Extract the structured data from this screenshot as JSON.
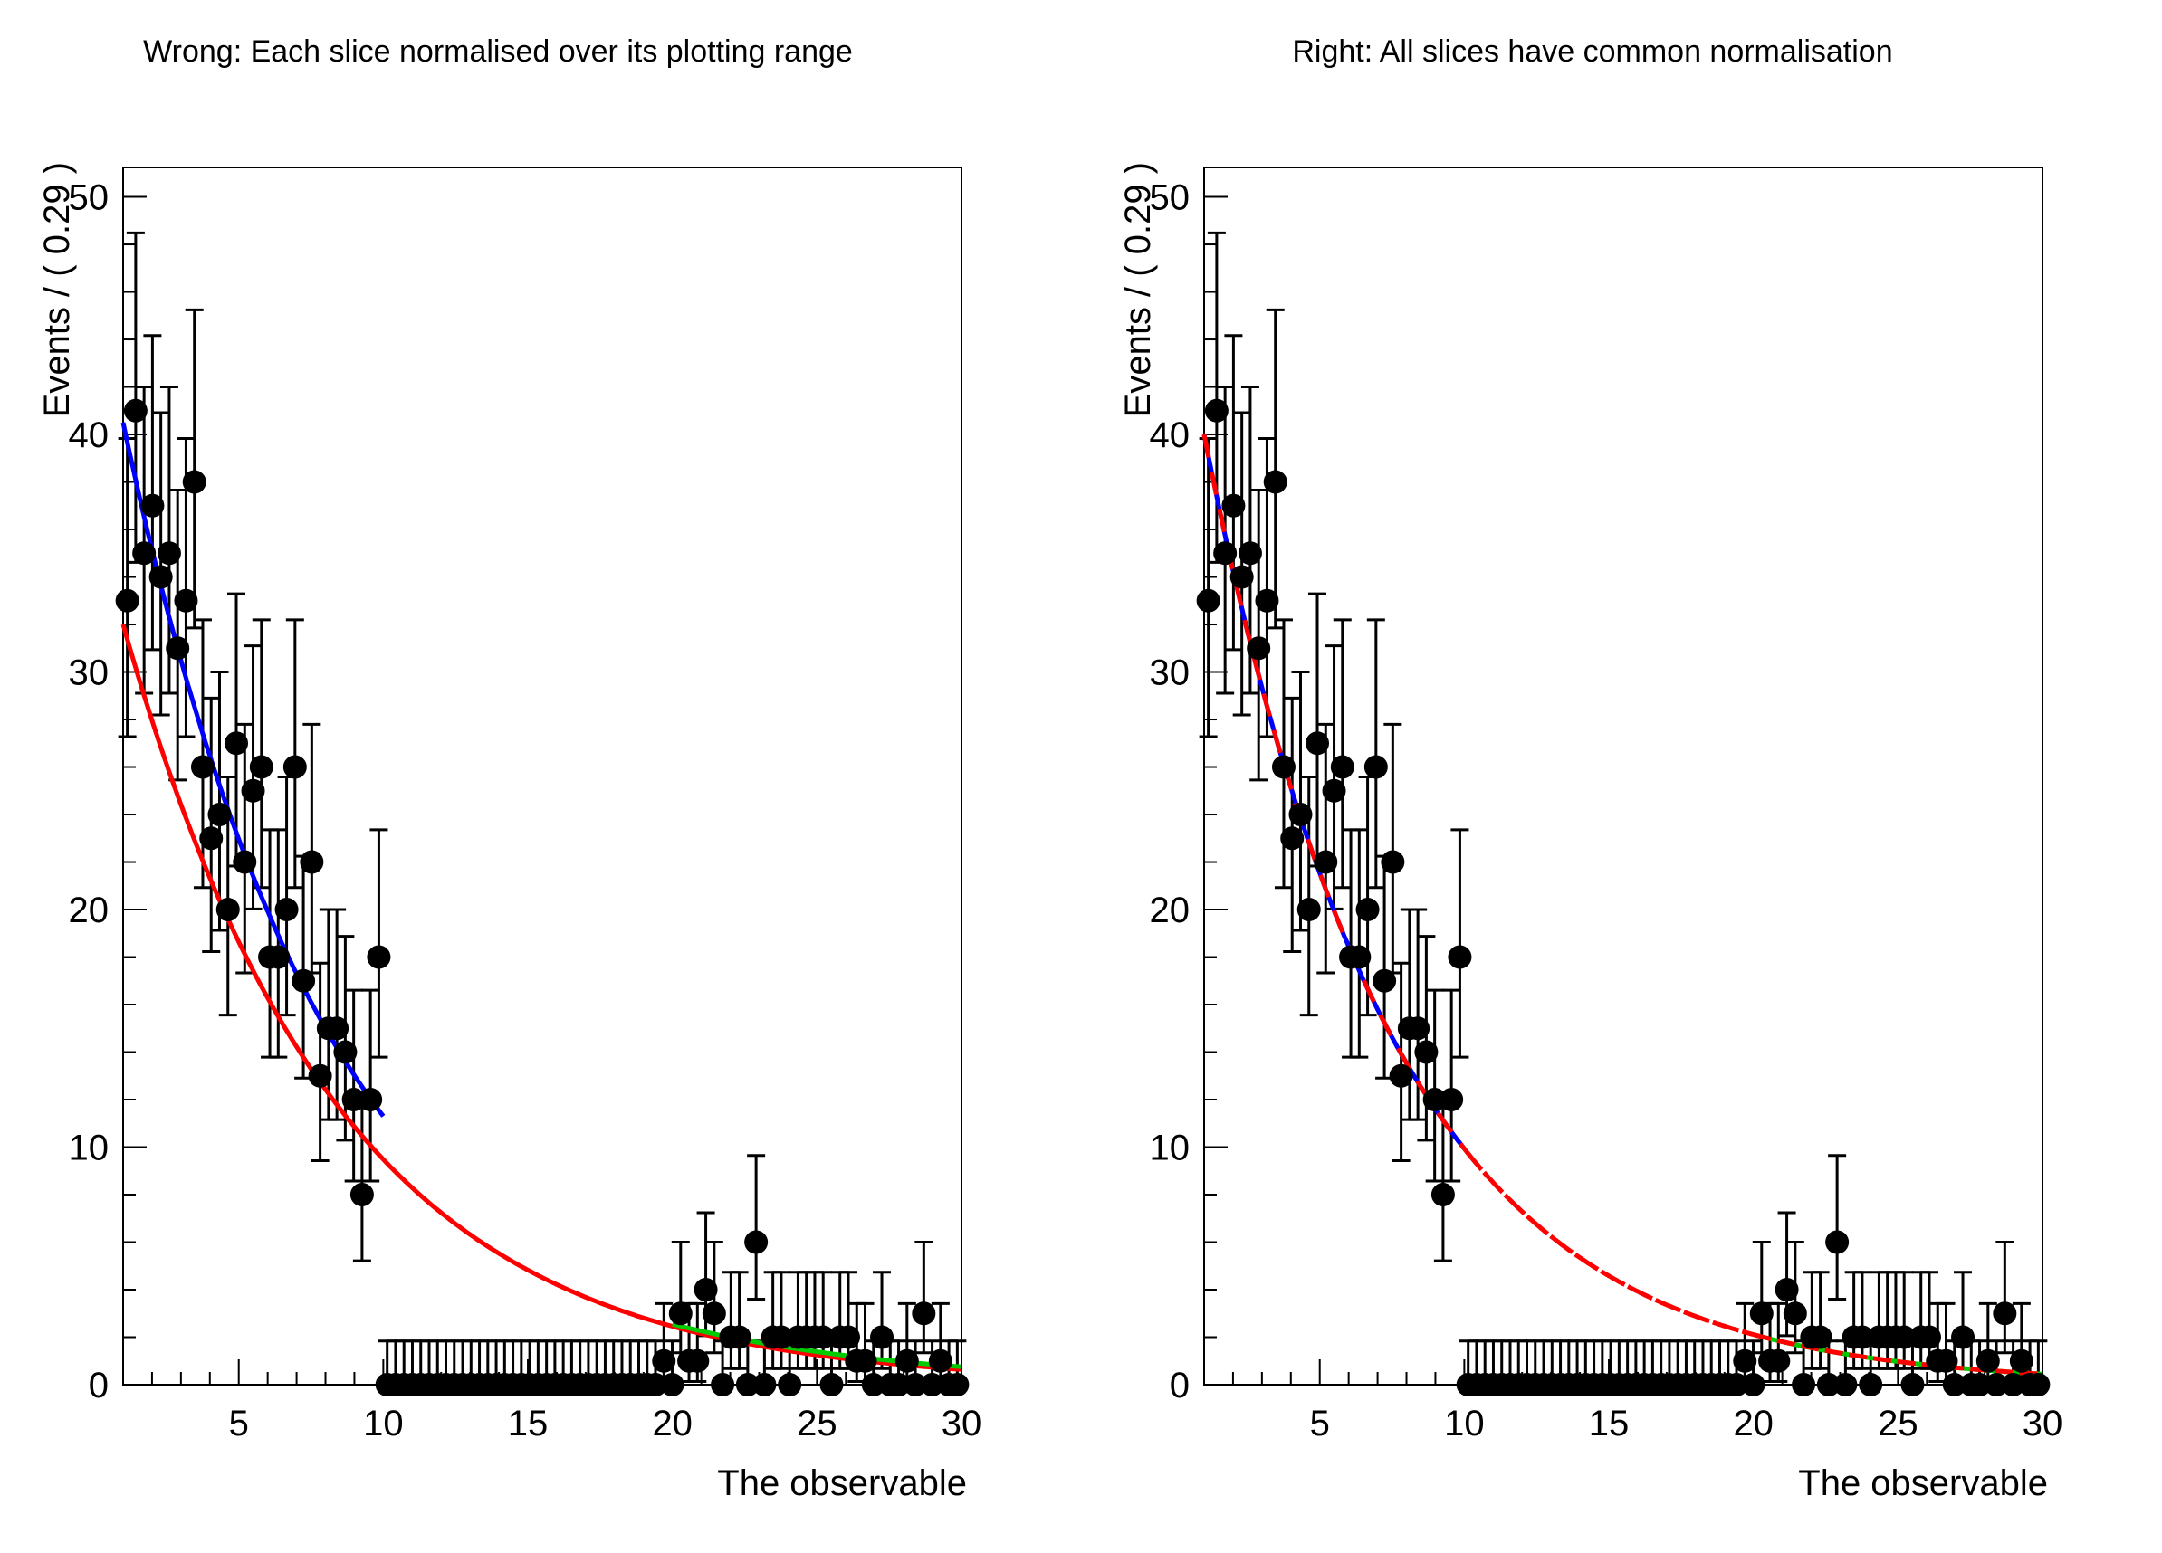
{
  "chart_data": {
    "type": "scatter",
    "xlabel": "The observable",
    "ylabel": "Events / ( 0.29 )",
    "xlim": [
      1,
      30
    ],
    "ylim": [
      0,
      51.24
    ],
    "x_major_ticks": [
      5,
      10,
      15,
      20,
      25,
      30
    ],
    "x_minor_step": 1,
    "y_major_ticks": [
      0,
      10,
      20,
      30,
      40,
      50
    ],
    "y_minor_step": 2,
    "bin_start": 1,
    "bin_width": 0.29,
    "n_bins": 100,
    "first_bin_center": 1.145,
    "counts": [
      33,
      41,
      35,
      37,
      34,
      35,
      31,
      33,
      38,
      26,
      23,
      24,
      20,
      27,
      22,
      25,
      26,
      18,
      18,
      20,
      26,
      17,
      22,
      13,
      15,
      15,
      14,
      12,
      8,
      12,
      18,
      0,
      0,
      0,
      0,
      0,
      0,
      0,
      0,
      0,
      0,
      0,
      0,
      0,
      0,
      0,
      0,
      0,
      0,
      0,
      0,
      0,
      0,
      0,
      0,
      0,
      0,
      0,
      0,
      0,
      0,
      0,
      0,
      0,
      1,
      0,
      3,
      1,
      1,
      4,
      3,
      0,
      2,
      2,
      0,
      6,
      0,
      2,
      2,
      0,
      2,
      2,
      2,
      2,
      0,
      2,
      2,
      1,
      1,
      0,
      2,
      0,
      0,
      1,
      0,
      3,
      0,
      1,
      0,
      0
    ],
    "marker_color": "#000000",
    "error_style": "poisson-asymmetric",
    "panels": [
      {
        "title": "Wrong: Each slice normalised over its plotting range",
        "curves": [
          {
            "name": "full-range-fit",
            "color": "#ff0000",
            "dash": "",
            "xmin": 1,
            "xmax": 30,
            "x0": 1,
            "y0": 32,
            "tau": 7.4
          },
          {
            "name": "slice1-fit",
            "color": "#0000ff",
            "dash": "",
            "xmin": 1,
            "xmax": 10,
            "x0": 1,
            "y0": 40.5,
            "tau": 7.05
          },
          {
            "name": "slice3-fit",
            "color": "#00cc00",
            "dash": "",
            "xmin": 20,
            "xmax": 30,
            "x0": 20,
            "y0": 2.55,
            "tau": 8.2
          }
        ]
      },
      {
        "title": "Right: All slices have common normalisation",
        "curves": [
          {
            "name": "slice1-fit",
            "color": "#0000ff",
            "dash": "",
            "xmin": 1,
            "xmax": 10,
            "x0": 1,
            "y0": 40,
            "tau": 6.46
          },
          {
            "name": "slice3-fit",
            "color": "#00cc00",
            "dash": "",
            "xmin": 20,
            "xmax": 30,
            "x0": 20,
            "y0": 2.11,
            "tau": 6.46
          },
          {
            "name": "full-range-fit",
            "color": "#ff0000",
            "dash": "26 16",
            "xmin": 1,
            "xmax": 10,
            "x0": 1,
            "y0": 40,
            "tau": 6.46
          },
          {
            "name": "full-range-fit",
            "color": "#ff0000",
            "dash": "30 4",
            "xmin": 10,
            "xmax": 20,
            "x0": 1,
            "y0": 40,
            "tau": 6.46
          },
          {
            "name": "full-range-fit",
            "color": "#ff0000",
            "dash": "20 7",
            "xmin": 20,
            "xmax": 30,
            "x0": 1,
            "y0": 40,
            "tau": 6.46
          }
        ]
      }
    ]
  }
}
